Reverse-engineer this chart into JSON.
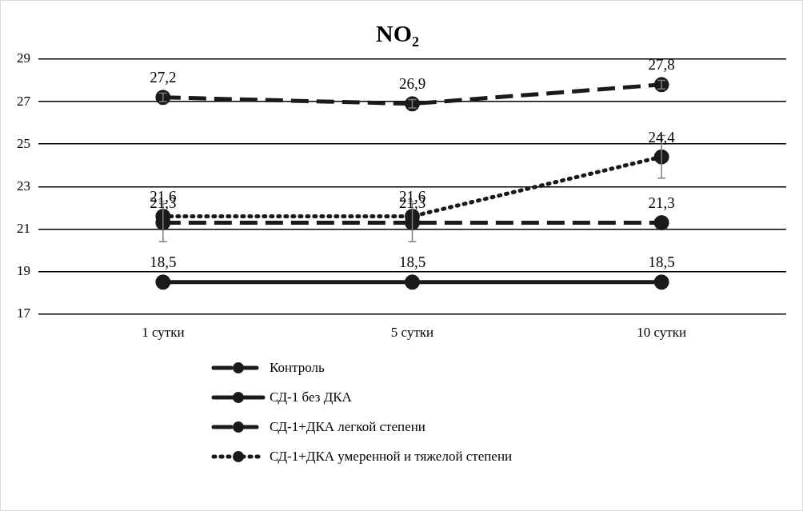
{
  "chart_data": {
    "type": "line",
    "title": "NO₂",
    "categories": [
      "1 сутки",
      "5 сутки",
      "10 сутки"
    ],
    "ylim": [
      17,
      29
    ],
    "yticks": [
      17,
      19,
      21,
      23,
      25,
      27,
      29
    ],
    "grid": "y",
    "legend": "bottom",
    "marker": "circle",
    "series": [
      {
        "name": "Контроль",
        "color": "#1a1a1a",
        "values": [
          27.2,
          26.9,
          27.8
        ],
        "value_labels": [
          "27,2",
          "26,9",
          "27,8"
        ],
        "errors": [
          0.2,
          0.2,
          0.2
        ],
        "line_style": "dashed"
      },
      {
        "name": "СД-1 без ДКА",
        "color": "#1a1a1a",
        "values": [
          18.5,
          18.5,
          18.5
        ],
        "value_labels": [
          "18,5",
          "18,5",
          "18,5"
        ],
        "line_style": "solid"
      },
      {
        "name": "СД-1+ДКА легкой степени",
        "color": "#1a1a1a",
        "values": [
          21.3,
          21.3,
          21.3
        ],
        "value_labels": [
          "21,3",
          "21,3",
          "21,3"
        ],
        "errors": [
          0.9,
          0.9,
          null
        ],
        "line_style": "dashed"
      },
      {
        "name": "СД-1+ДКА умеренной и тяжелой степени",
        "color": "#1a1a1a",
        "values": [
          21.6,
          21.6,
          24.4
        ],
        "value_labels": [
          "21,6",
          "21,6",
          "24,4"
        ],
        "errors": [
          null,
          null,
          1.0
        ],
        "line_style": "dotted"
      }
    ]
  }
}
